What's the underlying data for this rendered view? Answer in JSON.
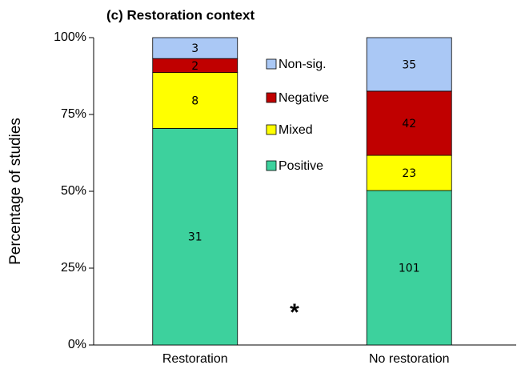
{
  "chart_data": {
    "type": "bar",
    "stacking": "percent",
    "title": "(c) Restoration context",
    "ylabel": "Percentage of studies",
    "annotation": "*",
    "categories": [
      "Restoration",
      "No restoration"
    ],
    "series": [
      {
        "name": "Positive",
        "color": "#3dd19d",
        "values": [
          31,
          101
        ]
      },
      {
        "name": "Mixed",
        "color": "#ffff00",
        "values": [
          8,
          23
        ]
      },
      {
        "name": "Negative",
        "color": "#c00000",
        "values": [
          2,
          42
        ]
      },
      {
        "name": "Non-sig.",
        "color": "#aac8f5",
        "values": [
          3,
          35
        ]
      }
    ],
    "ylim": [
      0,
      100
    ],
    "yticks": [
      {
        "value": 0,
        "label": "0%"
      },
      {
        "value": 25,
        "label": "25%"
      },
      {
        "value": 50,
        "label": "50%"
      },
      {
        "value": 75,
        "label": "75%"
      },
      {
        "value": 100,
        "label": "100%"
      }
    ],
    "legend": "top"
  }
}
